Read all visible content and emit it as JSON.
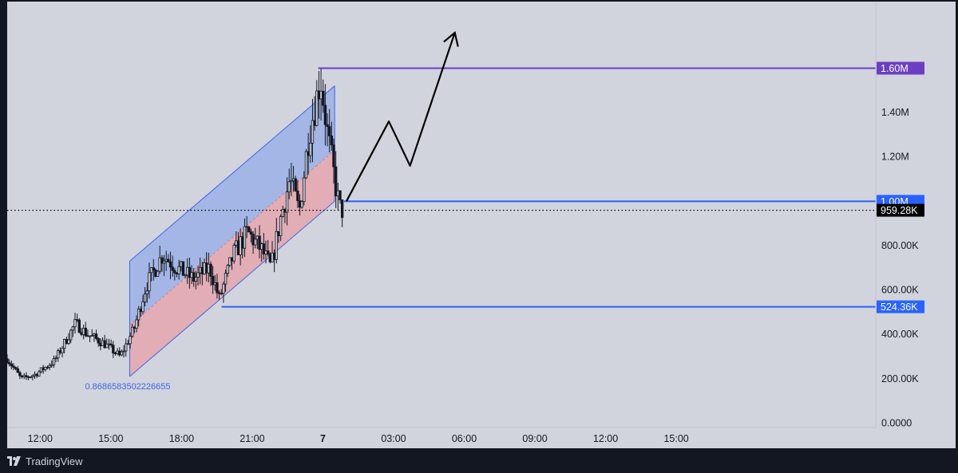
{
  "watermark": {
    "brand": "TradingView",
    "logo_icon": "tradingview-logo-icon"
  },
  "colors": {
    "background": "#d1d4dc",
    "candle": "#131722",
    "channel_upper_fill": "#9db2e6",
    "channel_lower_fill": "#e3a9b0",
    "channel_line": "#3d66e8",
    "resistance_line": "#6b3fc4",
    "support_line": "#2962ff",
    "arrow": "#000000",
    "price_tag_dark": "#000000"
  },
  "chart_data": {
    "type": "candlestick",
    "x_axis": {
      "tick_labels": [
        "12:00",
        "15:00",
        "18:00",
        "21:00",
        "7",
        "03:00",
        "06:00",
        "09:00",
        "12:00",
        "15:00"
      ],
      "range_hours": [
        -13.4,
        23.4
      ]
    },
    "y_axis": {
      "tick_labels": [
        "0.0000",
        "200.00K",
        "400.00K",
        "600.00K",
        "800.00K",
        "1.20M",
        "1.40M"
      ],
      "tick_values": [
        0,
        200000,
        400000,
        600000,
        800000,
        1200000,
        1400000
      ],
      "range": [
        -20000,
        1900000
      ]
    },
    "price_tags": [
      {
        "label": "1.60M",
        "value": 1600000,
        "style": "resistance"
      },
      {
        "label": "1.00M",
        "value": 1000000,
        "style": "support"
      },
      {
        "label": "959.28K",
        "value": 959280,
        "style": "current"
      },
      {
        "label": "524.36K",
        "value": 524360,
        "style": "support"
      }
    ],
    "horizontal_lines": [
      {
        "value": 1600000,
        "from_hour": -0.2,
        "style": "resistance"
      },
      {
        "value": 1000000,
        "from_hour": 0.9,
        "style": "support"
      },
      {
        "value": 524360,
        "from_hour": -4.3,
        "style": "support"
      }
    ],
    "current_price": {
      "value": 959280,
      "style": "dotted"
    },
    "parallel_channel": {
      "start_hour": -8.2,
      "end_hour": 0.5,
      "upper_start": 730000,
      "mid_start": 440000,
      "lower_start": 210000,
      "upper_end": 1520000,
      "mid_end": 1230000,
      "lower_end": 1000000,
      "label": "0.8686583502226655"
    },
    "projection_arrow": [
      {
        "hour": 1.0,
        "value": 1000000
      },
      {
        "hour": 2.8,
        "value": 1360000
      },
      {
        "hour": 3.7,
        "value": 1160000
      },
      {
        "hour": 5.6,
        "value": 1760000
      }
    ],
    "price_path": [
      {
        "hour": -13.4,
        "value": 290000
      },
      {
        "hour": -12.8,
        "value": 200000
      },
      {
        "hour": -12.2,
        "value": 220000
      },
      {
        "hour": -11.4,
        "value": 280000
      },
      {
        "hour": -10.5,
        "value": 450000
      },
      {
        "hour": -10.0,
        "value": 400000
      },
      {
        "hour": -9.3,
        "value": 360000
      },
      {
        "hour": -8.6,
        "value": 300000
      },
      {
        "hour": -8.0,
        "value": 430000
      },
      {
        "hour": -7.5,
        "value": 620000
      },
      {
        "hour": -6.8,
        "value": 760000
      },
      {
        "hour": -6.2,
        "value": 700000
      },
      {
        "hour": -5.5,
        "value": 650000
      },
      {
        "hour": -4.8,
        "value": 700000
      },
      {
        "hour": -4.4,
        "value": 560000
      },
      {
        "hour": -3.8,
        "value": 760000
      },
      {
        "hour": -3.2,
        "value": 860000
      },
      {
        "hour": -2.6,
        "value": 780000
      },
      {
        "hour": -2.2,
        "value": 700000
      },
      {
        "hour": -1.8,
        "value": 920000
      },
      {
        "hour": -1.4,
        "value": 1100000
      },
      {
        "hour": -1.0,
        "value": 950000
      },
      {
        "hour": -0.6,
        "value": 1300000
      },
      {
        "hour": -0.3,
        "value": 1450000
      },
      {
        "hour": -0.1,
        "value": 1560000
      },
      {
        "hour": 0.2,
        "value": 1300000
      },
      {
        "hour": 0.5,
        "value": 1100000
      },
      {
        "hour": 0.7,
        "value": 970000
      },
      {
        "hour": 0.85,
        "value": 959280
      }
    ]
  }
}
